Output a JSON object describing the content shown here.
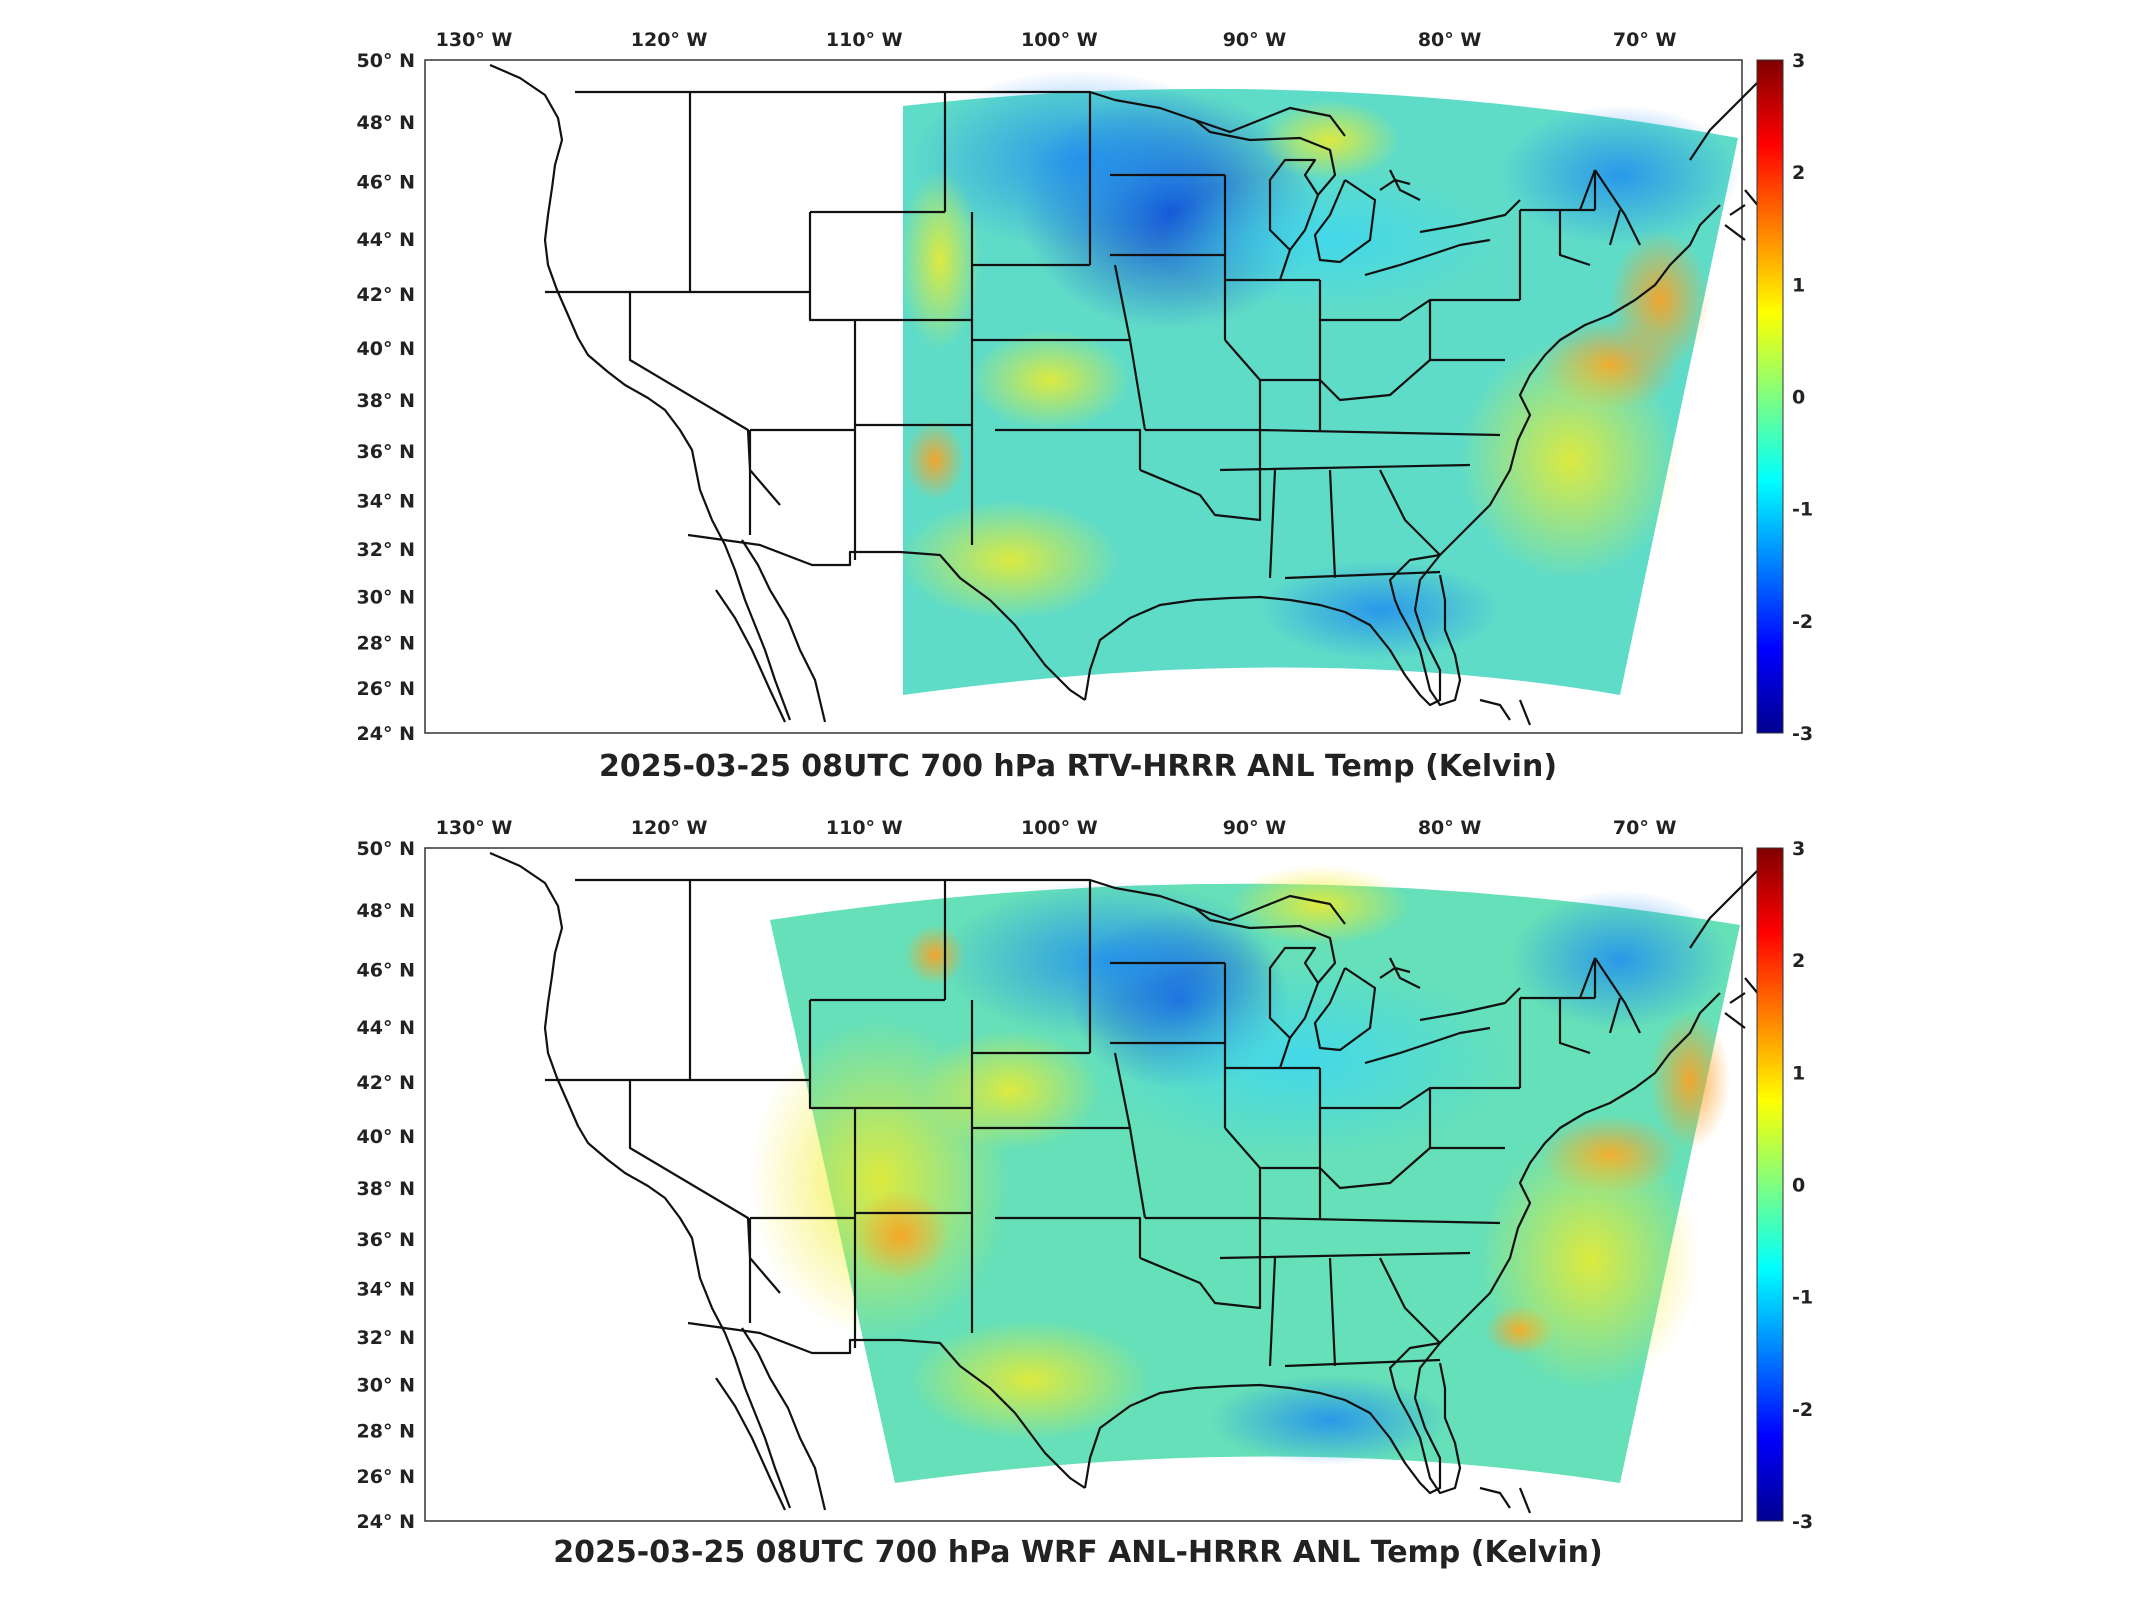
{
  "panels": [
    {
      "title": "2025-03-25 08UTC 700 hPa RTV-HRRR ANL Temp (Kelvin)",
      "lon_ticks": [
        {
          "lon": -130,
          "label": "130° W"
        },
        {
          "lon": -120,
          "label": "120° W"
        },
        {
          "lon": -110,
          "label": "110° W"
        },
        {
          "lon": -100,
          "label": "100° W"
        },
        {
          "lon": -90,
          "label": "90° W"
        },
        {
          "lon": -80,
          "label": "80° W"
        },
        {
          "lon": -70,
          "label": "70° W"
        }
      ],
      "lat_ticks": [
        {
          "lat": 50,
          "label": "50° N"
        },
        {
          "lat": 48,
          "label": "48° N"
        },
        {
          "lat": 46,
          "label": "46° N"
        },
        {
          "lat": 44,
          "label": "44° N"
        },
        {
          "lat": 42,
          "label": "42° N"
        },
        {
          "lat": 40,
          "label": "40° N"
        },
        {
          "lat": 38,
          "label": "38° N"
        },
        {
          "lat": 36,
          "label": "36° N"
        },
        {
          "lat": 34,
          "label": "34° N"
        },
        {
          "lat": 32,
          "label": "32° N"
        },
        {
          "lat": 30,
          "label": "30° N"
        },
        {
          "lat": 28,
          "label": "28° N"
        },
        {
          "lat": 26,
          "label": "26° N"
        },
        {
          "lat": 24,
          "label": "24° N"
        }
      ],
      "colorbar_ticks": [
        "3",
        "2",
        "1",
        "0",
        "-1",
        "-2",
        "-3"
      ]
    },
    {
      "title": "2025-03-25 08UTC 700 hPa WRF ANL-HRRR ANL Temp (Kelvin)",
      "lon_ticks": [
        {
          "lon": -130,
          "label": "130° W"
        },
        {
          "lon": -120,
          "label": "120° W"
        },
        {
          "lon": -110,
          "label": "110° W"
        },
        {
          "lon": -100,
          "label": "100° W"
        },
        {
          "lon": -90,
          "label": "90° W"
        },
        {
          "lon": -80,
          "label": "80° W"
        },
        {
          "lon": -70,
          "label": "70° W"
        }
      ],
      "lat_ticks": [
        {
          "lat": 50,
          "label": "50° N"
        },
        {
          "lat": 48,
          "label": "48° N"
        },
        {
          "lat": 46,
          "label": "46° N"
        },
        {
          "lat": 44,
          "label": "44° N"
        },
        {
          "lat": 42,
          "label": "42° N"
        },
        {
          "lat": 40,
          "label": "40° N"
        },
        {
          "lat": 38,
          "label": "38° N"
        },
        {
          "lat": 36,
          "label": "36° N"
        },
        {
          "lat": 34,
          "label": "34° N"
        },
        {
          "lat": 32,
          "label": "32° N"
        },
        {
          "lat": 30,
          "label": "30° N"
        },
        {
          "lat": 28,
          "label": "28° N"
        },
        {
          "lat": 26,
          "label": "26° N"
        },
        {
          "lat": 24,
          "label": "24° N"
        }
      ],
      "colorbar_ticks": [
        "3",
        "2",
        "1",
        "0",
        "-1",
        "-2",
        "-3"
      ]
    }
  ],
  "colorbar": {
    "min": -3,
    "max": 3,
    "colormap": "jet"
  }
}
